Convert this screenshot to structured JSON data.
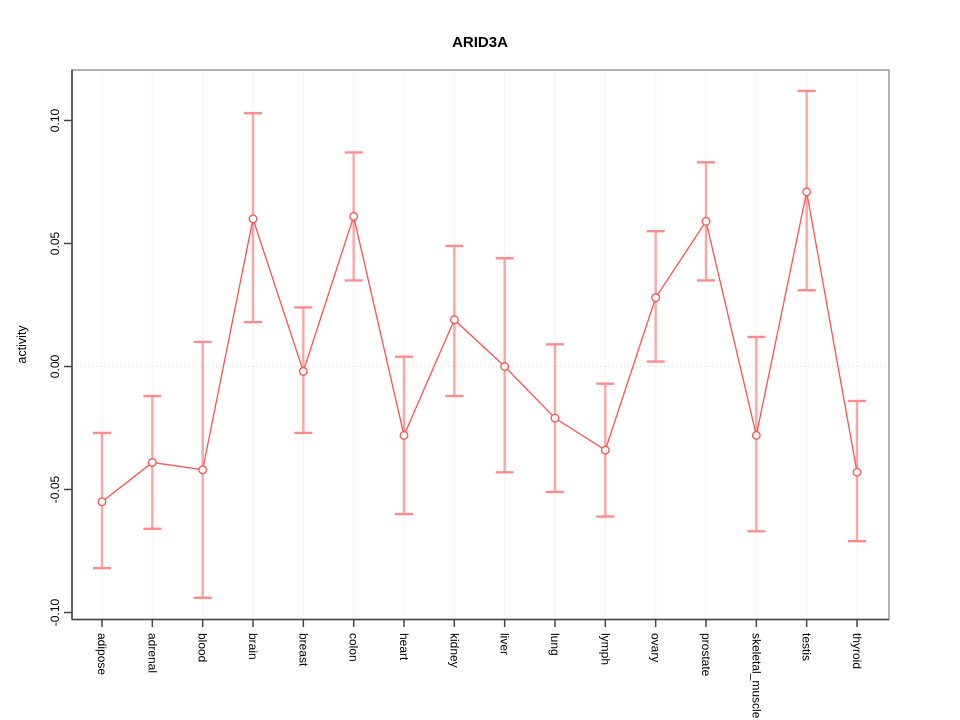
{
  "title": "ARID3A",
  "chart_data": {
    "type": "line",
    "title": "ARID3A",
    "xlabel": "",
    "ylabel": "activity",
    "categories": [
      "adipose",
      "adrenal",
      "blood",
      "brain",
      "breast",
      "colon",
      "heart",
      "kidney",
      "liver",
      "lung",
      "lymph",
      "ovary",
      "prostate",
      "skeletal_muscle",
      "testis",
      "thyroid"
    ],
    "series": [
      {
        "name": "activity",
        "values": [
          -0.055,
          -0.039,
          -0.042,
          0.06,
          -0.002,
          0.061,
          -0.028,
          0.019,
          0.0,
          -0.021,
          -0.034,
          0.028,
          0.059,
          -0.028,
          0.071,
          -0.043
        ]
      }
    ],
    "error_upper": [
      -0.027,
      -0.012,
      0.01,
      0.103,
      0.024,
      0.087,
      0.004,
      0.049,
      0.044,
      0.009,
      -0.007,
      0.055,
      0.083,
      0.012,
      0.112,
      -0.014
    ],
    "error_lower": [
      -0.082,
      -0.066,
      -0.094,
      0.018,
      -0.027,
      0.035,
      -0.06,
      -0.012,
      -0.043,
      -0.051,
      -0.061,
      0.002,
      0.035,
      -0.067,
      0.031,
      -0.071
    ],
    "yticks": {
      "values": [
        0.1,
        0.05,
        0.0,
        -0.05,
        -0.1
      ],
      "labels": [
        "0.10",
        "0.05",
        "0.00",
        "-0.05",
        "-0.10"
      ]
    },
    "ylim": [
      -0.103,
      0.121
    ],
    "grid": {
      "vertical": "dotted line at every category",
      "horizontal": "dotted line at zero only"
    },
    "legend": "none",
    "marker": "open-circle",
    "colors": {
      "line": "#ff5050",
      "marker": "#ff5050",
      "error_bar": "#ffa4a4",
      "error_cap": "#ff8c8c",
      "grid": "#dcdcdc",
      "box": "#989898",
      "axis": "#454545",
      "text": "#000000"
    }
  }
}
